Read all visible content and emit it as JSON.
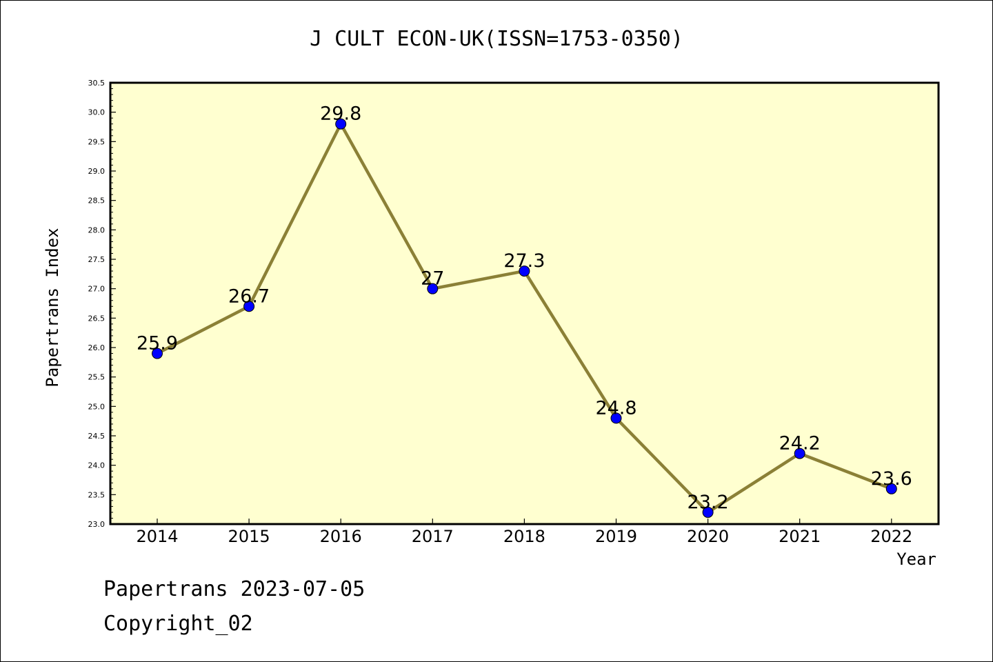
{
  "chart_data": {
    "type": "line",
    "title": "J CULT ECON-UK(ISSN=1753-0350)",
    "xlabel": "Year",
    "ylabel": "Papertrans Index",
    "categories": [
      "2014",
      "2015",
      "2016",
      "2017",
      "2018",
      "2019",
      "2020",
      "2021",
      "2022"
    ],
    "values": [
      25.9,
      26.7,
      29.8,
      27.0,
      27.3,
      24.8,
      23.2,
      24.2,
      23.6
    ],
    "data_labels": [
      "25.9",
      "26.7",
      "29.8",
      "27",
      "27.3",
      "24.8",
      "23.2",
      "24.2",
      "23.6"
    ],
    "ylim": [
      23.0,
      30.5
    ],
    "yticks": [
      "23.0",
      "23.5",
      "24.0",
      "24.5",
      "25.0",
      "25.5",
      "26.0",
      "26.5",
      "27.0",
      "27.5",
      "28.0",
      "28.5",
      "29.0",
      "29.5",
      "30.0",
      "30.5"
    ],
    "grid": false,
    "colors": {
      "plot_background": "#ffffd0",
      "line": "#8b8036",
      "marker": "#0000ff"
    }
  },
  "footer": {
    "date_line": "Papertrans 2023-07-05",
    "copyright": "Copyright_02"
  }
}
